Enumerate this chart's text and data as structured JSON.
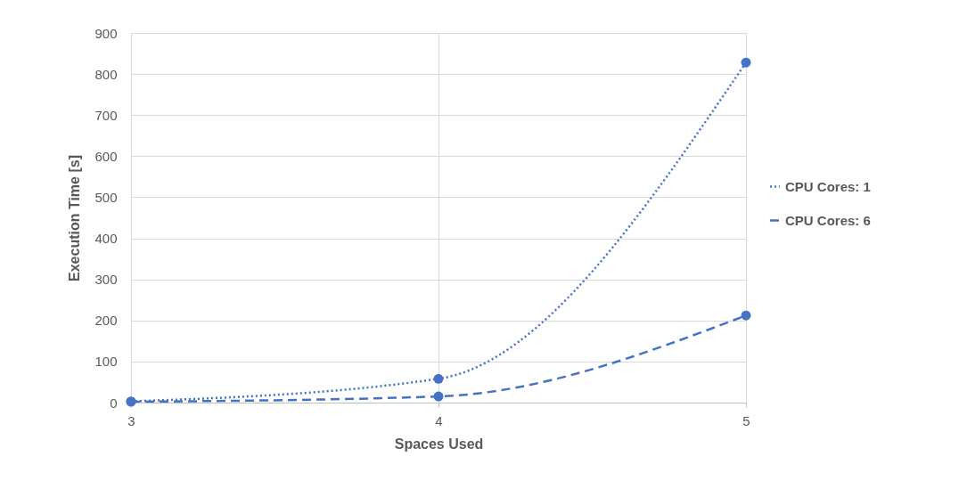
{
  "chart_data": {
    "type": "line",
    "xlabel": "Spaces Used",
    "ylabel": "Execution Time [s]",
    "x": [
      3,
      4,
      5
    ],
    "series": [
      {
        "name": "CPU Cores: 1",
        "color": "#4472c4",
        "values": [
          3,
          58,
          828
        ],
        "line_style": "dotted"
      },
      {
        "name": "CPU Cores: 6",
        "color": "#4472c4",
        "values": [
          2,
          15,
          212
        ],
        "line_style": "dashed"
      }
    ],
    "xlim": [
      3,
      5
    ],
    "xticks": [
      3,
      4,
      5
    ],
    "ylim": [
      0,
      900
    ],
    "yticks": [
      0,
      100,
      200,
      300,
      400,
      500,
      600,
      700,
      800,
      900
    ],
    "grid": true,
    "legend": "right",
    "marker": "circle"
  }
}
